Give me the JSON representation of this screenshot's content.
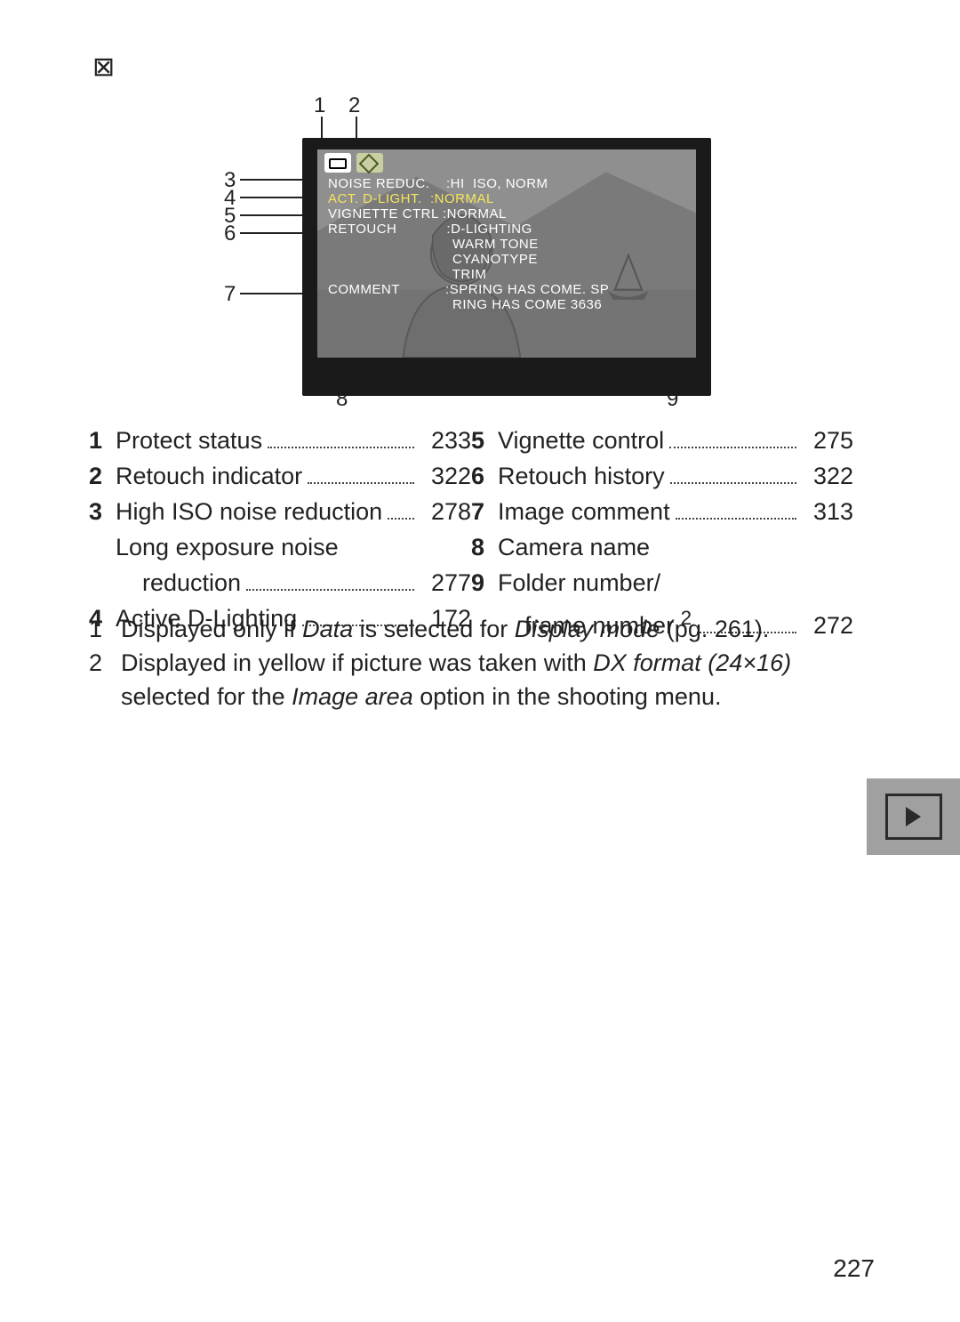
{
  "top_glyph": "⊠",
  "diagram": {
    "callouts_top": [
      "1",
      "2"
    ],
    "callouts_left": [
      "3",
      "4",
      "5",
      "6",
      "7"
    ],
    "callouts_bottom": [
      "8",
      "9"
    ],
    "screen_text": [
      "NOISE REDUC.    :HI  ISO, NORM",
      "ACT. D-LIGHT.  :NORMAL",
      "VIGNETTE CTRL :NORMAL",
      "RETOUCH            :D-LIGHTING",
      "                              WARM TONE",
      "                              CYANOTYPE",
      "                              TRIM",
      "COMMENT           :SPRING HAS COME. SP",
      "                              RING HAS COME 3636"
    ],
    "yellow_row_index": 1
  },
  "legend_left": [
    {
      "n": "1",
      "label": "Protect status",
      "pg": "233"
    },
    {
      "n": "2",
      "label": "Retouch indicator",
      "pg": "322"
    },
    {
      "n": "3",
      "label": "High ISO noise reduction",
      "pg": "278"
    },
    {
      "n": "",
      "label": "Long exposure noise",
      "pg": ""
    },
    {
      "n": "",
      "label": "reduction",
      "pg": "277",
      "indent": true
    },
    {
      "n": "4",
      "label": "Active D-Lighting",
      "pg": "172"
    }
  ],
  "legend_right": [
    {
      "n": "5",
      "label": "Vignette control",
      "pg": "275"
    },
    {
      "n": "6",
      "label": "Retouch history",
      "pg": "322"
    },
    {
      "n": "7",
      "label": "Image comment",
      "pg": "313"
    },
    {
      "n": "8",
      "label": "Camera name",
      "pg": ""
    },
    {
      "n": "9",
      "label": "Folder number/",
      "pg": ""
    },
    {
      "n": "",
      "label": "frame number ",
      "sup": "2",
      "pg": "272",
      "indent": true
    }
  ],
  "footnotes": [
    {
      "n": "1",
      "html": "Displayed only if <em>Data</em> is selected for <em>Display mode</em> (pg. 261)."
    },
    {
      "n": "2",
      "html": "Displayed in yellow if picture was taken with <em>DX format (24×16)</em> selected for the <em>Image area</em> option in the shooting menu."
    }
  ],
  "page_number": "227"
}
